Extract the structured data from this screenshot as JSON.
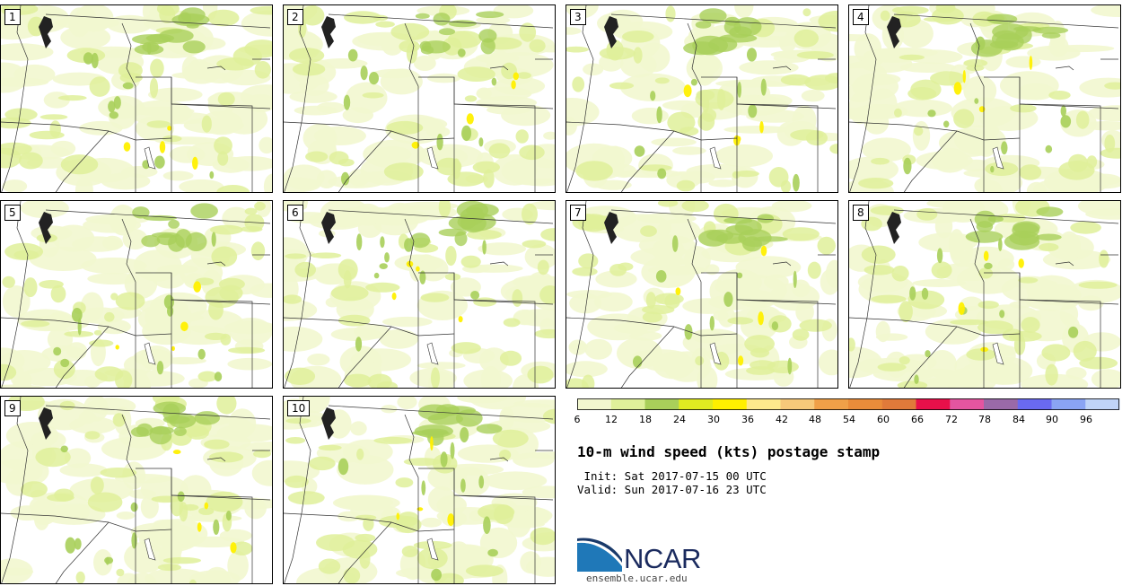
{
  "title": "10-m wind speed (kts) postage stamp",
  "init_label": " Init: Sat 2017-07-15 00 UTC",
  "valid_label": "Valid: Sun 2017-07-16 23 UTC",
  "logo_text": "NCAR",
  "url": "ensemble.ucar.edu",
  "members": [
    "1",
    "2",
    "3",
    "4",
    "5",
    "6",
    "7",
    "8",
    "9",
    "10"
  ],
  "colorbar": {
    "ticks": [
      "6",
      "12",
      "18",
      "24",
      "30",
      "36",
      "42",
      "48",
      "54",
      "60",
      "66",
      "72",
      "78",
      "84",
      "90",
      "96"
    ],
    "colors": [
      "#f2f7cf",
      "#dff09a",
      "#a9cf5a",
      "#e0eb21",
      "#fff000",
      "#fde98c",
      "#f7c97a",
      "#f0a048",
      "#ea8c3a",
      "#e07a3a",
      "#e8104a",
      "#e455a0",
      "#9a6aa8",
      "#6a6af0",
      "#8aa4f4",
      "#c0d4f8"
    ]
  }
}
